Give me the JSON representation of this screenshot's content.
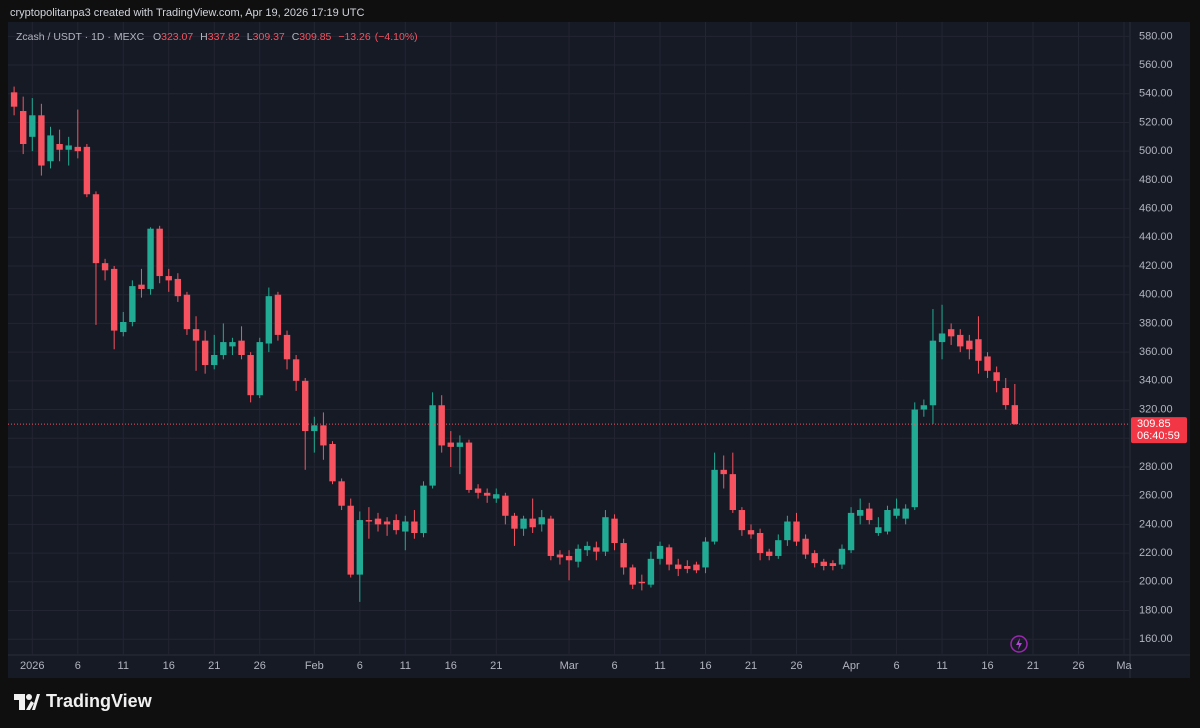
{
  "header": {
    "attribution": "cryptopolitanpa3 created with TradingView.com, Apr 19, 2026 17:19 UTC"
  },
  "footer": {
    "logo": "TradingView"
  },
  "chart_data": {
    "type": "candlestick",
    "title": "Zcash / USDT · 1D · MEXC",
    "ohlc_labels": [
      "O",
      "H",
      "L",
      "C"
    ],
    "change": {
      "value": -13.26,
      "label": "−13.26"
    },
    "change_pct": {
      "value": -4.1,
      "label": "(−4.10%)"
    },
    "countdown": "06:40:59",
    "up_color": "#22ab94",
    "down_color": "#f7525f",
    "grid": true,
    "x": [
      "2025-12-30",
      "2025-12-31",
      "2026-01-01",
      "2026-01-02",
      "2026-01-03",
      "2026-01-04",
      "2026-01-05",
      "2026-01-06",
      "2026-01-07",
      "2026-01-08",
      "2026-01-09",
      "2026-01-10",
      "2026-01-11",
      "2026-01-12",
      "2026-01-13",
      "2026-01-14",
      "2026-01-15",
      "2026-01-16",
      "2026-01-17",
      "2026-01-18",
      "2026-01-19",
      "2026-01-20",
      "2026-01-21",
      "2026-01-22",
      "2026-01-23",
      "2026-01-24",
      "2026-01-25",
      "2026-01-26",
      "2026-01-27",
      "2026-01-28",
      "2026-01-29",
      "2026-01-30",
      "2026-01-31",
      "2026-02-01",
      "2026-02-02",
      "2026-02-03",
      "2026-02-04",
      "2026-02-05",
      "2026-02-06",
      "2026-02-07",
      "2026-02-08",
      "2026-02-09",
      "2026-02-10",
      "2026-02-11",
      "2026-02-12",
      "2026-02-13",
      "2026-02-14",
      "2026-02-15",
      "2026-02-16",
      "2026-02-17",
      "2026-02-18",
      "2026-02-19",
      "2026-02-20",
      "2026-02-21",
      "2026-02-22",
      "2026-02-23",
      "2026-02-24",
      "2026-02-25",
      "2026-02-26",
      "2026-02-27",
      "2026-02-28",
      "2026-03-01",
      "2026-03-02",
      "2026-03-03",
      "2026-03-04",
      "2026-03-05",
      "2026-03-06",
      "2026-03-07",
      "2026-03-08",
      "2026-03-09",
      "2026-03-10",
      "2026-03-11",
      "2026-03-12",
      "2026-03-13",
      "2026-03-14",
      "2026-03-15",
      "2026-03-16",
      "2026-03-17",
      "2026-03-18",
      "2026-03-19",
      "2026-03-20",
      "2026-03-21",
      "2026-03-22",
      "2026-03-23",
      "2026-03-24",
      "2026-03-25",
      "2026-03-26",
      "2026-03-27",
      "2026-03-28",
      "2026-03-29",
      "2026-03-30",
      "2026-03-31",
      "2026-04-01",
      "2026-04-02",
      "2026-04-03",
      "2026-04-04",
      "2026-04-05",
      "2026-04-06",
      "2026-04-07",
      "2026-04-08",
      "2026-04-09",
      "2026-04-10",
      "2026-04-11",
      "2026-04-12",
      "2026-04-13",
      "2026-04-14",
      "2026-04-15",
      "2026-04-16",
      "2026-04-17",
      "2026-04-18",
      "2026-04-19"
    ],
    "open": [
      541,
      528,
      510,
      525,
      493,
      505,
      501,
      503,
      503,
      470,
      422,
      418,
      374,
      381,
      407,
      404,
      446,
      413,
      411,
      400,
      376,
      368,
      351,
      358,
      364,
      368,
      358,
      330,
      366,
      400,
      372,
      355,
      340,
      305,
      309,
      296,
      270,
      253,
      205,
      243,
      244,
      242,
      243,
      235,
      242,
      234,
      267,
      323,
      297,
      294,
      297,
      265,
      262,
      258,
      260,
      246,
      237,
      244,
      240,
      244,
      219,
      218,
      214,
      222,
      224,
      221,
      244,
      227,
      210,
      200,
      198,
      216,
      224,
      212,
      211,
      212,
      210,
      228,
      278,
      275,
      250,
      236,
      234,
      221,
      218,
      229,
      242,
      230,
      220,
      214,
      213,
      212,
      222,
      246,
      251,
      234,
      235,
      246,
      244,
      252,
      320,
      323,
      367,
      376,
      372,
      368,
      369,
      357,
      346,
      335,
      323.07
    ],
    "high": [
      545,
      538,
      537,
      533,
      517,
      515,
      510,
      529,
      505,
      472,
      425,
      420,
      388,
      410,
      418,
      447,
      448,
      418,
      415,
      402,
      385,
      375,
      372,
      380,
      370,
      378,
      360,
      370,
      405,
      402,
      375,
      358,
      342,
      315,
      318,
      298,
      272,
      258,
      249,
      252,
      248,
      245,
      247,
      246,
      250,
      270,
      332,
      330,
      305,
      302,
      299,
      268,
      265,
      265,
      262,
      248,
      246,
      258,
      250,
      246,
      222,
      222,
      226,
      228,
      228,
      250,
      247,
      230,
      212,
      205,
      221,
      228,
      226,
      216,
      215,
      214,
      231,
      290,
      288,
      290,
      252,
      240,
      237,
      223,
      233,
      246,
      248,
      233,
      222,
      216,
      215,
      226,
      252,
      258,
      255,
      245,
      253,
      258,
      254,
      325,
      327,
      390,
      393,
      380,
      376,
      372,
      385,
      360,
      350,
      342,
      337.82
    ],
    "low": [
      525,
      498,
      500,
      483,
      488,
      493,
      490,
      495,
      468,
      379,
      410,
      362,
      371,
      378,
      398,
      400,
      408,
      402,
      395,
      372,
      347,
      345,
      348,
      355,
      358,
      355,
      325,
      328,
      360,
      368,
      348,
      333,
      278,
      290,
      285,
      268,
      250,
      203,
      186,
      230,
      235,
      232,
      233,
      222,
      230,
      231,
      265,
      290,
      280,
      275,
      262,
      258,
      255,
      255,
      240,
      225,
      232,
      234,
      235,
      215,
      212,
      201,
      210,
      218,
      215,
      218,
      222,
      205,
      195,
      194,
      196,
      212,
      208,
      204,
      206,
      206,
      206,
      226,
      265,
      248,
      232,
      230,
      215,
      215,
      216,
      225,
      225,
      216,
      210,
      208,
      208,
      209,
      220,
      240,
      240,
      232,
      233,
      244,
      240,
      250,
      315,
      310,
      355,
      365,
      360,
      355,
      345,
      342,
      332,
      320,
      309.37
    ],
    "close": [
      531,
      505,
      525,
      490,
      511,
      501,
      504,
      500,
      470,
      422,
      417,
      375,
      381,
      406,
      404,
      446,
      413,
      410,
      399,
      376,
      368,
      351,
      358,
      367,
      367,
      358,
      330,
      367,
      399,
      372,
      355,
      340,
      305,
      309,
      295,
      270,
      253,
      205,
      243,
      242,
      240,
      240,
      236,
      242,
      234,
      267,
      323,
      295,
      294,
      297,
      264,
      262,
      260,
      261,
      246,
      237,
      244,
      238,
      245,
      218,
      217,
      215,
      223,
      225,
      221,
      245,
      227,
      210,
      198,
      199,
      216,
      225,
      212,
      209,
      209,
      208,
      228,
      278,
      275,
      250,
      236,
      233,
      220,
      218,
      229,
      242,
      228,
      219,
      213,
      211,
      211,
      223,
      248,
      250,
      243,
      238,
      250,
      251,
      251,
      320,
      323,
      368,
      373,
      371,
      364,
      362,
      354,
      347,
      340,
      323.11,
      309.85
    ],
    "ylim": [
      149,
      590
    ],
    "yticks": [
      {
        "value": 160,
        "label": "160.00"
      },
      {
        "value": 180,
        "label": "180.00"
      },
      {
        "value": 200,
        "label": "200.00"
      },
      {
        "value": 220,
        "label": "220.00"
      },
      {
        "value": 240,
        "label": "240.00"
      },
      {
        "value": 260,
        "label": "260.00"
      },
      {
        "value": 280,
        "label": "280.00"
      },
      {
        "value": 300,
        "label": "300.00"
      },
      {
        "value": 320,
        "label": "320.00"
      },
      {
        "value": 340,
        "label": "340.00"
      },
      {
        "value": 360,
        "label": "360.00"
      },
      {
        "value": 380,
        "label": "380.00"
      },
      {
        "value": 400,
        "label": "400.00"
      },
      {
        "value": 420,
        "label": "420.00"
      },
      {
        "value": 440,
        "label": "440.00"
      },
      {
        "value": 460,
        "label": "460.00"
      },
      {
        "value": 480,
        "label": "480.00"
      },
      {
        "value": 500,
        "label": "500.00"
      },
      {
        "value": 520,
        "label": "520.00"
      },
      {
        "value": 540,
        "label": "540.00"
      },
      {
        "value": 560,
        "label": "560.00"
      },
      {
        "value": 580,
        "label": "580.00"
      }
    ],
    "xlim": [
      "2025-12-29",
      "2026-05-01"
    ],
    "xticks": [
      {
        "value": "2026-01-01",
        "label": "2026"
      },
      {
        "value": "2026-01-06",
        "label": "6"
      },
      {
        "value": "2026-01-11",
        "label": "11"
      },
      {
        "value": "2026-01-16",
        "label": "16"
      },
      {
        "value": "2026-01-21",
        "label": "21"
      },
      {
        "value": "2026-01-26",
        "label": "26"
      },
      {
        "value": "2026-02-01",
        "label": "Feb"
      },
      {
        "value": "2026-02-06",
        "label": "6"
      },
      {
        "value": "2026-02-11",
        "label": "11"
      },
      {
        "value": "2026-02-16",
        "label": "16"
      },
      {
        "value": "2026-02-21",
        "label": "21"
      },
      {
        "value": "2026-03-01",
        "label": "Mar"
      },
      {
        "value": "2026-03-06",
        "label": "6"
      },
      {
        "value": "2026-03-11",
        "label": "11"
      },
      {
        "value": "2026-03-16",
        "label": "16"
      },
      {
        "value": "2026-03-21",
        "label": "21"
      },
      {
        "value": "2026-03-26",
        "label": "26"
      },
      {
        "value": "2026-04-01",
        "label": "Apr"
      },
      {
        "value": "2026-04-06",
        "label": "6"
      },
      {
        "value": "2026-04-11",
        "label": "11"
      },
      {
        "value": "2026-04-16",
        "label": "16"
      },
      {
        "value": "2026-04-21",
        "label": "21"
      },
      {
        "value": "2026-04-26",
        "label": "26"
      },
      {
        "value": "2026-05-01",
        "label": "Ma"
      }
    ]
  }
}
